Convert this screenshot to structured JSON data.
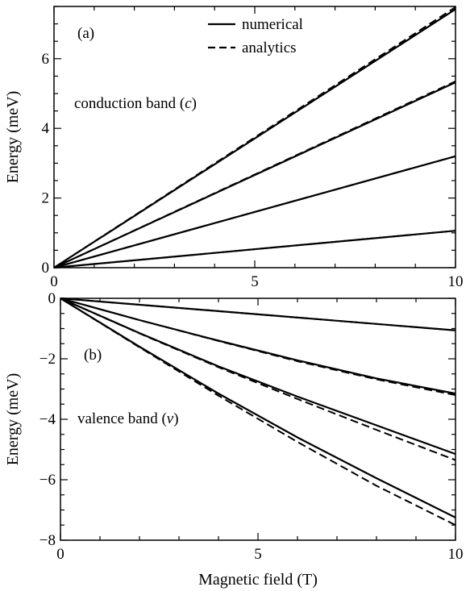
{
  "chart_data": [
    {
      "panel_label": "(a)",
      "type": "line",
      "xlabel": "",
      "ylabel": "Energy (meV)",
      "xlim": [
        0,
        10
      ],
      "ylim": [
        0,
        7.5
      ],
      "x_ticks": [
        0,
        5,
        10
      ],
      "x_tick_labels": [
        "0",
        "5",
        "10"
      ],
      "y_ticks": [
        0,
        2,
        4,
        6
      ],
      "y_tick_labels": [
        "0",
        "2",
        "4",
        "6"
      ],
      "annotation_text": "conduction band (",
      "annotation_italic": "c",
      "annotation_close": ")",
      "legend": {
        "placement": "top-center",
        "entries": [
          {
            "label": "numerical",
            "style": "solid"
          },
          {
            "label": "analytics",
            "style": "dashed"
          }
        ]
      },
      "series": [
        {
          "style": "solid",
          "x": [
            0,
            10
          ],
          "y": [
            0,
            1.06
          ]
        },
        {
          "style": "dashed",
          "x": [
            0,
            10
          ],
          "y": [
            0,
            1.06
          ]
        },
        {
          "style": "solid",
          "x": [
            0,
            10
          ],
          "y": [
            0,
            3.2
          ]
        },
        {
          "style": "dashed",
          "x": [
            0,
            10
          ],
          "y": [
            0,
            3.2
          ]
        },
        {
          "style": "solid",
          "x": [
            0,
            10
          ],
          "y": [
            0,
            5.32
          ]
        },
        {
          "style": "dashed",
          "x": [
            0,
            10
          ],
          "y": [
            0,
            5.35
          ]
        },
        {
          "style": "solid",
          "x": [
            0,
            10
          ],
          "y": [
            0,
            7.42
          ]
        },
        {
          "style": "dashed",
          "x": [
            0,
            10
          ],
          "y": [
            0,
            7.48
          ]
        }
      ]
    },
    {
      "panel_label": "(b)",
      "type": "line",
      "xlabel": "Magnetic field (T)",
      "ylabel": "Energy (meV)",
      "xlim": [
        0,
        10
      ],
      "ylim": [
        -8,
        0
      ],
      "x_ticks": [
        0,
        5,
        10
      ],
      "x_tick_labels": [
        "0",
        "5",
        "10"
      ],
      "y_ticks": [
        0,
        -2,
        -4,
        -6,
        -8
      ],
      "y_tick_labels": [
        "0",
        "−2",
        "−4",
        "−6",
        "−8"
      ],
      "annotation_text": "valence band (",
      "annotation_italic": "v",
      "annotation_close": ")",
      "series": [
        {
          "style": "solid",
          "x": [
            0,
            10
          ],
          "y": [
            0,
            -1.06
          ]
        },
        {
          "style": "dashed",
          "x": [
            0,
            10
          ],
          "y": [
            0,
            -1.06
          ]
        },
        {
          "style": "solid",
          "x": [
            0,
            2,
            4,
            6,
            8,
            10
          ],
          "y": [
            0,
            -0.72,
            -1.4,
            -2.05,
            -2.65,
            -3.15
          ]
        },
        {
          "style": "dashed",
          "x": [
            0,
            2,
            4,
            6,
            8,
            10
          ],
          "y": [
            0,
            -0.72,
            -1.41,
            -2.08,
            -2.68,
            -3.2
          ]
        },
        {
          "style": "solid",
          "x": [
            0,
            2,
            4,
            6,
            8,
            10
          ],
          "y": [
            0,
            -1.15,
            -2.25,
            -3.25,
            -4.2,
            -5.15
          ]
        },
        {
          "style": "dashed",
          "x": [
            0,
            2,
            4,
            6,
            8,
            10
          ],
          "y": [
            0,
            -1.16,
            -2.28,
            -3.33,
            -4.35,
            -5.35
          ]
        },
        {
          "style": "solid",
          "x": [
            0,
            2,
            4,
            6,
            8,
            10
          ],
          "y": [
            0,
            -1.6,
            -3.15,
            -4.6,
            -5.95,
            -7.25
          ]
        },
        {
          "style": "dashed",
          "x": [
            0,
            2,
            4,
            6,
            8,
            10
          ],
          "y": [
            0,
            -1.62,
            -3.22,
            -4.75,
            -6.2,
            -7.5
          ]
        }
      ]
    }
  ]
}
